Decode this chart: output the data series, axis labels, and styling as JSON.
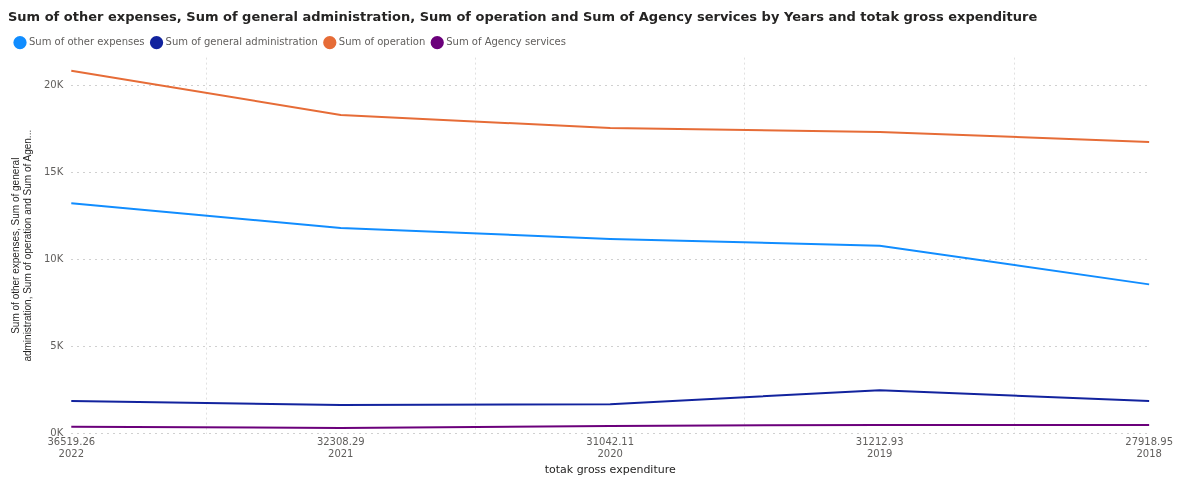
{
  "chart_data": {
    "type": "line",
    "title": "Sum of other expenses, Sum of general administration, Sum of operation and Sum of Agency services by Years and totak gross expenditure",
    "xlabel": "totak gross expenditure",
    "ylabel": "Sum of other expenses, Sum of general administration, Sum of operation and Sum of Agen...",
    "categories": [
      "36519.26\n2022",
      "32308.29\n2021",
      "31042.11\n2020",
      "31212.93\n2019",
      "27918.95\n2018"
    ],
    "series": [
      {
        "name": "Sum of other expenses",
        "color": "#118dff",
        "values": [
          13240,
          11820,
          11190,
          10800,
          8580
        ]
      },
      {
        "name": "Sum of general administration",
        "color": "#12239e",
        "values": [
          1880,
          1650,
          1700,
          2500,
          1880
        ]
      },
      {
        "name": "Sum of operation",
        "color": "#e66c37",
        "values": [
          20850,
          18300,
          17560,
          17330,
          16760
        ]
      },
      {
        "name": "Sum of Agency services",
        "color": "#6b007b",
        "values": [
          400,
          340,
          450,
          510,
          510
        ]
      }
    ],
    "ylim": [
      0,
      21600
    ],
    "yticks": [
      {
        "value": 0,
        "label": "0K"
      },
      {
        "value": 5000,
        "label": "5K"
      },
      {
        "value": 10000,
        "label": "10K"
      },
      {
        "value": 15000,
        "label": "15K"
      },
      {
        "value": 20000,
        "label": "20K"
      }
    ],
    "grid": true,
    "legend": "top left",
    "marker": "none",
    "line_style": "solid"
  }
}
